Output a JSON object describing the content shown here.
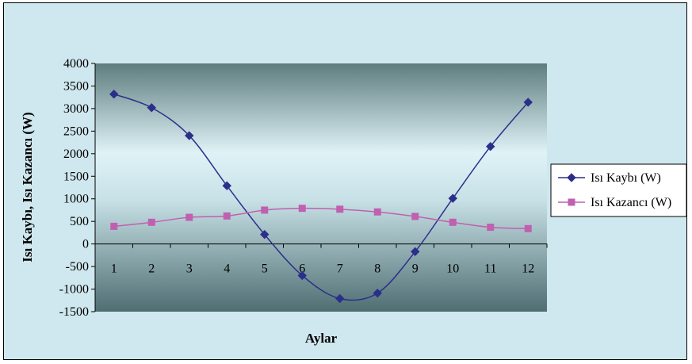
{
  "chart_data": {
    "type": "line",
    "title": "",
    "xlabel": "Aylar",
    "ylabel": "Isı Kaybı, Isı Kazancı (W)",
    "x": [
      1,
      2,
      3,
      4,
      5,
      6,
      7,
      8,
      9,
      10,
      11,
      12
    ],
    "x_tick_labels": [
      "1",
      "2",
      "3",
      "4",
      "5",
      "6",
      "7",
      "8",
      "9",
      "10",
      "11",
      "12"
    ],
    "ylim": [
      -1500,
      4000
    ],
    "y_ticks": [
      4000,
      3500,
      3000,
      2500,
      2000,
      1500,
      1000,
      500,
      0,
      -500,
      -1000,
      -1500
    ],
    "grid": false,
    "legend_position": "right",
    "series": [
      {
        "name": "Isı Kaybı (W)",
        "color": "#2b2f8a",
        "marker": "diamond",
        "values": [
          3320,
          3020,
          2400,
          1290,
          210,
          -700,
          -1210,
          -1090,
          -170,
          1010,
          2160,
          3140
        ]
      },
      {
        "name": "Isı Kazancı (W)",
        "color": "#c060b0",
        "marker": "square",
        "values": [
          390,
          480,
          590,
          620,
          750,
          790,
          770,
          710,
          610,
          480,
          370,
          340
        ]
      }
    ]
  }
}
